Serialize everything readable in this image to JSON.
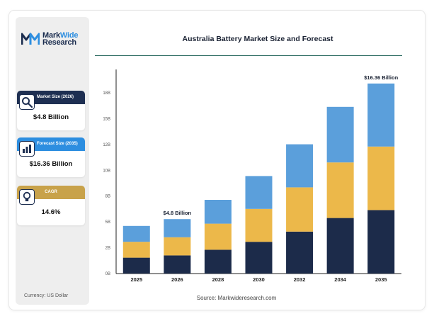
{
  "logo": {
    "brand_part1": "Mark",
    "brand_part2": "Wide",
    "brand_line2": "Research"
  },
  "stats": [
    {
      "label": "Market Size (2026)",
      "value": "$4.8 Billion",
      "icon": "magnifier-icon",
      "color": "#1e2f52"
    },
    {
      "label": "Forecast Size (2035)",
      "value": "$16.36 Billion",
      "icon": "bar-chart-icon",
      "color": "#2d8ee0"
    },
    {
      "label": "CAGR",
      "value": "14.6%",
      "icon": "lightbulb-icon",
      "color": "#c8a24a"
    }
  ],
  "currency_note": "Currency: US Dollar",
  "source_note": "Source: Markwideresearch.com",
  "chart_data": {
    "type": "bar",
    "stacked": true,
    "title": "Australia Battery Market Size and Forecast",
    "categories": [
      "2025",
      "2026",
      "2028",
      "2030",
      "2032",
      "2034",
      "2035"
    ],
    "y_ticks": [
      "0B",
      "2B",
      "5B",
      "8B",
      "10B",
      "12B",
      "15B",
      "18B"
    ],
    "ylim": [
      0,
      18
    ],
    "grid": false,
    "legend": "none",
    "series": [
      {
        "color": "#1c2b4a",
        "values": [
          1.4,
          1.6,
          2.1,
          2.8,
          3.7,
          4.9,
          5.6
        ]
      },
      {
        "color": "#ecb84a",
        "values": [
          1.4,
          1.6,
          2.3,
          2.9,
          3.9,
          4.9,
          5.6
        ]
      },
      {
        "color": "#5b9fdb",
        "values": [
          1.4,
          1.6,
          2.1,
          2.9,
          3.8,
          4.9,
          5.56
        ]
      }
    ],
    "annotations": [
      {
        "category": "2026",
        "text": "$4.8 Billion"
      },
      {
        "category": "2035",
        "text": "$16.36 Billion"
      }
    ]
  }
}
